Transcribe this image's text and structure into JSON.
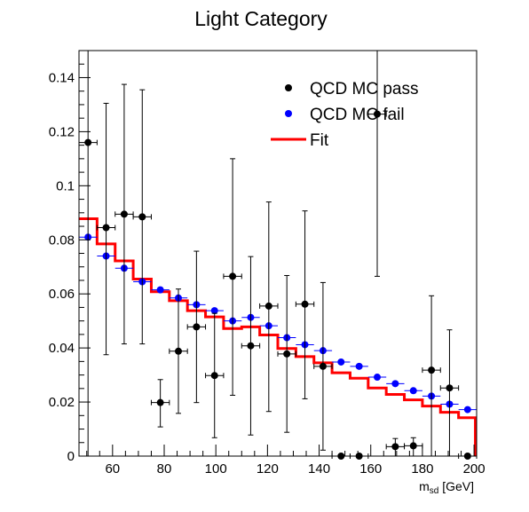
{
  "chart_data": {
    "type": "scatter",
    "title": "Light Category",
    "xlabel": "m",
    "xlabel_sub": "sd",
    "xlabel_unit": " [GeV]",
    "ylabel": "",
    "xlim": [
      47,
      201
    ],
    "ylim": [
      0,
      0.15
    ],
    "x_ticks": [
      60,
      80,
      100,
      120,
      140,
      160,
      180,
      200
    ],
    "y_ticks": [
      0,
      0.02,
      0.04,
      0.06,
      0.08,
      0.1,
      0.12,
      0.14
    ],
    "legend_position": "top-right",
    "legend": [
      {
        "label": "QCD MC pass",
        "kind": "marker",
        "color": "#000000"
      },
      {
        "label": "QCD MC fail",
        "kind": "marker",
        "color": "#0000ff"
      },
      {
        "label": "Fit",
        "kind": "line",
        "color": "#ff0000"
      }
    ],
    "series": [
      {
        "name": "QCD MC pass",
        "color": "#000000",
        "x_half_width": 3.5,
        "points": [
          {
            "x": 50.5,
            "y": 0.116,
            "err_low": 0.116,
            "err_high": 0.034
          },
          {
            "x": 57.5,
            "y": 0.0845,
            "err_low": 0.047,
            "err_high": 0.046
          },
          {
            "x": 64.5,
            "y": 0.0895,
            "err_low": 0.048,
            "err_high": 0.048
          },
          {
            "x": 71.5,
            "y": 0.0885,
            "err_low": 0.047,
            "err_high": 0.047
          },
          {
            "x": 78.5,
            "y": 0.0198,
            "err_low": 0.009,
            "err_high": 0.0085
          },
          {
            "x": 85.5,
            "y": 0.0388,
            "err_low": 0.023,
            "err_high": 0.023
          },
          {
            "x": 92.5,
            "y": 0.0478,
            "err_low": 0.028,
            "err_high": 0.028
          },
          {
            "x": 99.5,
            "y": 0.0298,
            "err_low": 0.023,
            "err_high": 0.023
          },
          {
            "x": 106.5,
            "y": 0.0665,
            "err_low": 0.044,
            "err_high": 0.0435
          },
          {
            "x": 113.5,
            "y": 0.0408,
            "err_low": 0.033,
            "err_high": 0.033
          },
          {
            "x": 120.5,
            "y": 0.0555,
            "err_low": 0.039,
            "err_high": 0.0385
          },
          {
            "x": 127.5,
            "y": 0.0378,
            "err_low": 0.029,
            "err_high": 0.029
          },
          {
            "x": 134.5,
            "y": 0.0562,
            "err_low": 0.035,
            "err_high": 0.0345
          },
          {
            "x": 141.5,
            "y": 0.0332,
            "err_low": 0.031,
            "err_high": 0.031
          },
          {
            "x": 148.5,
            "y": 0.0,
            "err_low": 0.0,
            "err_high": 0.0
          },
          {
            "x": 155.5,
            "y": 0.0,
            "err_low": 0.0,
            "err_high": 0.0
          },
          {
            "x": 162.5,
            "y": 0.1265,
            "err_low": 0.06,
            "err_high": 0.06
          },
          {
            "x": 169.5,
            "y": 0.0035,
            "err_low": 0.0035,
            "err_high": 0.003
          },
          {
            "x": 176.5,
            "y": 0.0038,
            "err_low": 0.0038,
            "err_high": 0.003
          },
          {
            "x": 183.5,
            "y": 0.0318,
            "err_low": 0.0318,
            "err_high": 0.0275
          },
          {
            "x": 190.5,
            "y": 0.0252,
            "err_low": 0.0252,
            "err_high": 0.0215
          },
          {
            "x": 197.5,
            "y": 0.0,
            "err_low": 0.0,
            "err_high": 0.0
          }
        ]
      },
      {
        "name": "QCD MC fail",
        "color": "#0000ff",
        "x_half_width": 3.5,
        "points": [
          {
            "x": 50.5,
            "y": 0.081
          },
          {
            "x": 57.5,
            "y": 0.074
          },
          {
            "x": 64.5,
            "y": 0.0695
          },
          {
            "x": 71.5,
            "y": 0.0645
          },
          {
            "x": 78.5,
            "y": 0.0615
          },
          {
            "x": 85.5,
            "y": 0.0585
          },
          {
            "x": 92.5,
            "y": 0.056
          },
          {
            "x": 99.5,
            "y": 0.0538
          },
          {
            "x": 106.5,
            "y": 0.05
          },
          {
            "x": 113.5,
            "y": 0.0513
          },
          {
            "x": 120.5,
            "y": 0.0482
          },
          {
            "x": 127.5,
            "y": 0.0438
          },
          {
            "x": 134.5,
            "y": 0.0412
          },
          {
            "x": 141.5,
            "y": 0.039
          },
          {
            "x": 148.5,
            "y": 0.0348
          },
          {
            "x": 155.5,
            "y": 0.0332
          },
          {
            "x": 162.5,
            "y": 0.0292
          },
          {
            "x": 169.5,
            "y": 0.0268
          },
          {
            "x": 176.5,
            "y": 0.0242
          },
          {
            "x": 183.5,
            "y": 0.0222
          },
          {
            "x": 190.5,
            "y": 0.0192
          },
          {
            "x": 197.5,
            "y": 0.0172
          }
        ]
      },
      {
        "name": "Fit",
        "color": "#ff0000",
        "type": "step",
        "bin_edges": [
          47,
          54,
          61,
          68,
          75,
          82,
          89,
          96,
          103,
          110,
          117,
          124,
          131,
          138,
          145,
          152,
          159,
          166,
          173,
          180,
          187,
          194,
          200.5
        ],
        "values": [
          0.0878,
          0.0785,
          0.0722,
          0.0655,
          0.0608,
          0.0575,
          0.0538,
          0.0515,
          0.0472,
          0.0478,
          0.0448,
          0.0398,
          0.0368,
          0.0345,
          0.0308,
          0.0288,
          0.0252,
          0.0228,
          0.0208,
          0.0185,
          0.0162,
          0.0142
        ]
      }
    ]
  }
}
